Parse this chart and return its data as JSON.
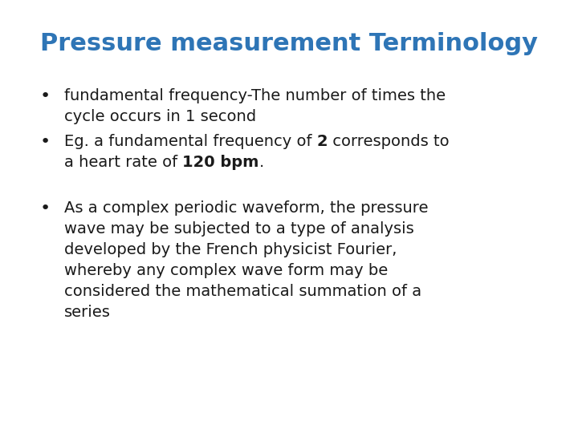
{
  "title": "Pressure measurement Terminology",
  "title_color": "#2E75B6",
  "title_fontsize": 22,
  "background_color": "#ffffff",
  "bullet1_line1": "fundamental frequency-The number of times the",
  "bullet1_line2": "cycle occurs in 1 second",
  "bullet2_line1_pre": "Eg. a fundamental frequency of ",
  "bullet2_bold1": "2",
  "bullet2_line1_post": " corresponds to",
  "bullet2_line2_pre": "a heart rate of ",
  "bullet2_bold2": "120 bpm",
  "bullet2_line2_post": ".",
  "bullet3_line1": "As a complex periodic waveform, the pressure",
  "bullet3_line2": "wave may be subjected to a type of analysis",
  "bullet3_line3": "developed by the French physicist Fourier,",
  "bullet3_line4": "whereby any complex wave form may be",
  "bullet3_line5": "considered the mathematical summation of a",
  "bullet3_line6": "series",
  "text_color": "#1a1a1a",
  "text_fontsize": 14,
  "font_family": "DejaVu Sans"
}
